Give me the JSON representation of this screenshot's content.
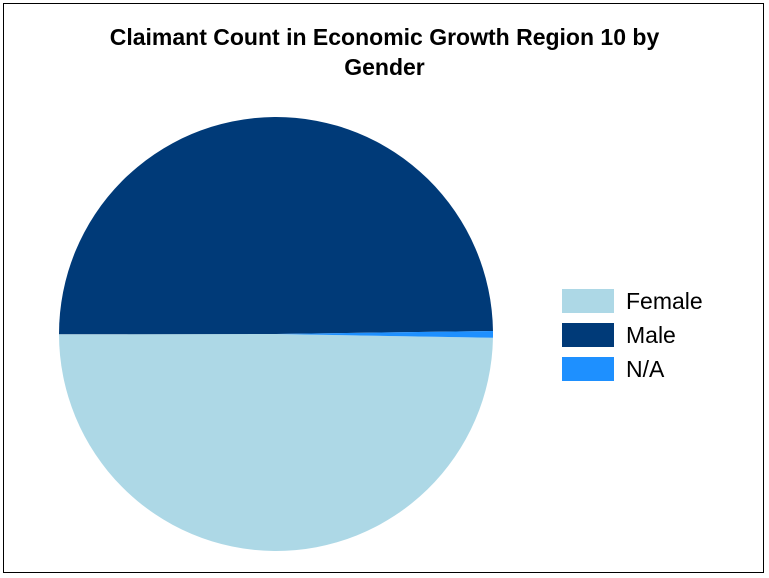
{
  "chart_data": {
    "type": "pie",
    "title_lines": [
      "Claimant Count in Economic Growth Region 10 by",
      "Gender"
    ],
    "categories": [
      "Female",
      "Male",
      "N/A"
    ],
    "values": [
      49.7,
      49.8,
      0.5
    ],
    "colors": [
      "#ADD8E6",
      "#003A78",
      "#1E90FF"
    ],
    "legend_position": "right"
  }
}
